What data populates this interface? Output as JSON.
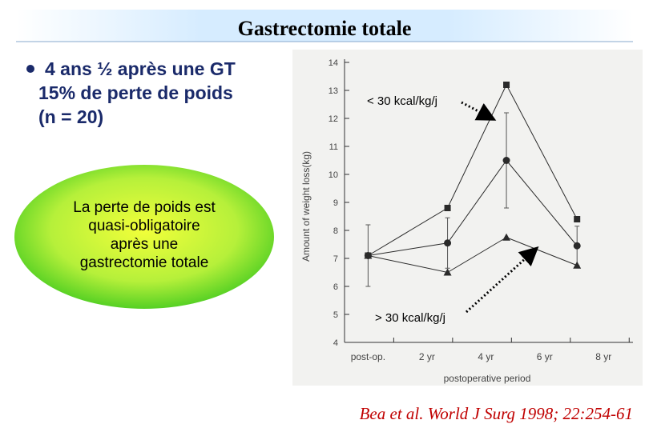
{
  "header": {
    "title": "Gastrectomie totale"
  },
  "bullet": {
    "lines": [
      "4 ans ½ après une GT",
      "15% de  perte de poids",
      "(n = 20)"
    ]
  },
  "callout": {
    "lines": [
      "La perte de poids est",
      "quasi-obligatoire",
      "après une",
      "gastrectomie totale"
    ]
  },
  "chart_data": {
    "type": "line",
    "x_label": "postoperative period",
    "y_label": "Amount of weight loss(kg)",
    "x": [
      0,
      2.7,
      4.7,
      7.1
    ],
    "xlim": [
      -0.8,
      9
    ],
    "xticks": [
      {
        "value": 0,
        "label": "post-op."
      },
      {
        "value": 2,
        "label": "2 yr"
      },
      {
        "value": 4,
        "label": "4 yr"
      },
      {
        "value": 6,
        "label": "6 yr"
      },
      {
        "value": 8,
        "label": "8 yr"
      }
    ],
    "ylim": [
      4,
      14
    ],
    "yticks": [
      4,
      5,
      6,
      7,
      8,
      9,
      10,
      11,
      12,
      13,
      14
    ],
    "series": [
      {
        "marker": "square",
        "color": "#2a2a2a",
        "values": [
          7.1,
          8.8,
          13.2,
          8.4
        ]
      },
      {
        "marker": "circle",
        "color": "#2a2a2a",
        "values": [
          7.1,
          7.55,
          10.5,
          7.45
        ],
        "errors": [
          1.1,
          0.9,
          1.7,
          0.7
        ]
      },
      {
        "marker": "triangle",
        "color": "#2a2a2a",
        "values": [
          7.1,
          6.5,
          7.75,
          6.75
        ]
      }
    ],
    "annotations": [
      "< 30 kcal/kg/j",
      "> 30 kcal/kg/j"
    ]
  },
  "citation": "Bea et al. World J Surg 1998; 22:254-61"
}
